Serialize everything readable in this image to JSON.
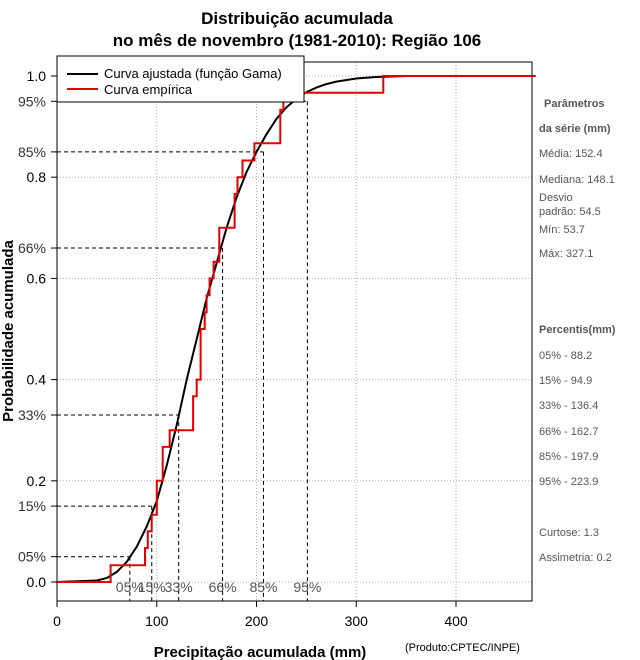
{
  "chart_data": {
    "type": "line",
    "title": [
      "Distribuição acumulada",
      "no mês de novembro (1981-2010): Região 106"
    ],
    "xlabel": "Precipitação acumulada (mm)",
    "ylabel": "Probabilidade acumulada",
    "credit": "(Produto:CPTEC/INPE)",
    "xlim": [
      0,
      480
    ],
    "ylim": [
      -0.05,
      1.05
    ],
    "xticks": [
      "0",
      "100",
      "200",
      "300",
      "400"
    ],
    "xtick_values": [
      0,
      100,
      200,
      300,
      400
    ],
    "yticks": [
      "0.0",
      "0.2",
      "0.4",
      "0.6",
      "0.8",
      "1.0"
    ],
    "ytick_values": [
      0.0,
      0.2,
      0.4,
      0.6,
      0.8,
      1.0
    ],
    "grid": true,
    "legend_position": "top-left",
    "series": [
      {
        "name": "Curva ajustada (função Gama)",
        "color": "#000000",
        "x": [
          0,
          40,
          50,
          60,
          70,
          80,
          90,
          100,
          110,
          120,
          130,
          140,
          150,
          160,
          170,
          180,
          190,
          200,
          210,
          220,
          230,
          240,
          250,
          260,
          270,
          280,
          300,
          320,
          350,
          400
        ],
        "y": [
          0.0,
          0.003,
          0.008,
          0.02,
          0.04,
          0.07,
          0.11,
          0.16,
          0.23,
          0.31,
          0.4,
          0.48,
          0.56,
          0.63,
          0.7,
          0.76,
          0.81,
          0.85,
          0.885,
          0.915,
          0.938,
          0.955,
          0.968,
          0.977,
          0.984,
          0.989,
          0.995,
          0.998,
          1.0,
          1.0
        ]
      },
      {
        "name": "Curva empírica",
        "color": "#e00000",
        "step_x": [
          0,
          53.7,
          88.2,
          91,
          94.9,
          100,
          106,
          113,
          118,
          136.4,
          140,
          144,
          148.1,
          150,
          153,
          157,
          162.7,
          175,
          178,
          181,
          186,
          197.9,
          218,
          223.9,
          227,
          250,
          327.1,
          480
        ],
        "step_y": [
          0.0,
          0.033,
          0.067,
          0.1,
          0.133,
          0.2,
          0.267,
          0.3,
          0.3,
          0.367,
          0.4,
          0.5,
          0.533,
          0.567,
          0.6,
          0.633,
          0.7,
          0.7,
          0.767,
          0.8,
          0.833,
          0.867,
          0.867,
          0.933,
          0.967,
          0.967,
          1.0,
          1.0
        ]
      }
    ],
    "percentile_markers": [
      {
        "label": "05%",
        "prob_label": "05%",
        "p": 0.05,
        "x": 73
      },
      {
        "label": "15%",
        "prob_label": "15%",
        "p": 0.15,
        "x": 95
      },
      {
        "label": "33%",
        "prob_label": "33%",
        "p": 0.33,
        "x": 122
      },
      {
        "label": "66%",
        "prob_label": "66%",
        "p": 0.66,
        "x": 166
      },
      {
        "label": "85%",
        "prob_label": "85%",
        "p": 0.85,
        "x": 207
      },
      {
        "label": "95%",
        "prob_label": "95%",
        "p": 0.95,
        "x": 251
      }
    ]
  },
  "side_panel": {
    "params_title": [
      "Parâmetros",
      "da série (mm)"
    ],
    "params": [
      "Média: 152.4",
      "Mediana: 148.1",
      "Desvio",
      "padrão: 54.5",
      "Mín: 53.7",
      "Máx: 327.1"
    ],
    "percentis_title": "Percentis(mm)",
    "percentis": [
      "05% - 88.2",
      "15% - 94.9",
      "33% - 136.4",
      "66% - 162.7",
      "85% - 197.9",
      "95% - 223.9"
    ],
    "curtose": "Curtose: 1.3",
    "assimetria": "Assimetria: 0.2"
  }
}
